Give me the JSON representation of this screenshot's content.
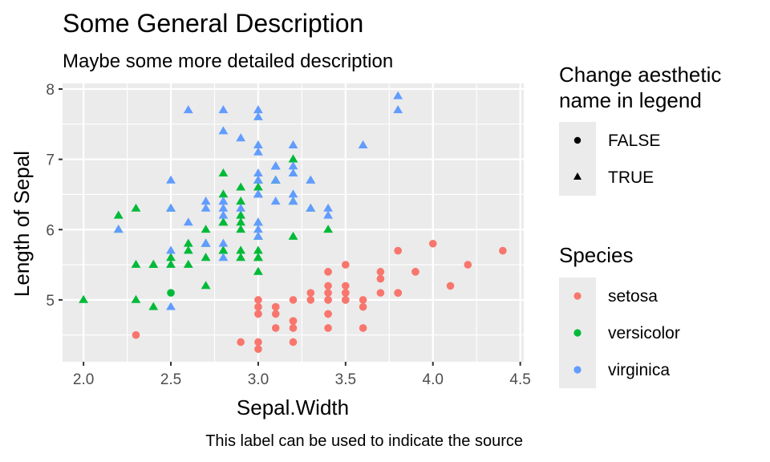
{
  "chart_data": {
    "type": "scatter",
    "title": "Some General Description",
    "subtitle": "Maybe some more detailed description",
    "xlabel": "Sepal.Width",
    "ylabel": "Length of Sepal",
    "caption": "This label can be used to indicate the source",
    "xlim": [
      1.88,
      4.52
    ],
    "ylim": [
      4.12,
      8.08
    ],
    "x_ticks": [
      "2.0",
      "2.5",
      "3.0",
      "3.5",
      "4.0",
      "4.5"
    ],
    "y_ticks": [
      "5",
      "6",
      "7",
      "8"
    ],
    "grid": true,
    "legend_placement": "right",
    "legends": {
      "shape": {
        "title_lines": [
          "Change aesthetic",
          "name in legend"
        ],
        "items": [
          {
            "label": "FALSE",
            "shape": "circle"
          },
          {
            "label": "TRUE",
            "shape": "triangle"
          }
        ]
      },
      "color": {
        "title": "Species",
        "items": [
          {
            "label": "setosa",
            "color": "#F8766D"
          },
          {
            "label": "versicolor",
            "color": "#00BA38"
          },
          {
            "label": "virginica",
            "color": "#619CFF"
          }
        ]
      }
    },
    "series": [
      {
        "name": "setosa",
        "color": "#F8766D",
        "shape": "circle",
        "points": [
          [
            3.5,
            5.1
          ],
          [
            3.0,
            4.9
          ],
          [
            3.2,
            4.7
          ],
          [
            3.1,
            4.6
          ],
          [
            3.6,
            5.0
          ],
          [
            3.9,
            5.4
          ],
          [
            3.4,
            4.6
          ],
          [
            3.4,
            5.0
          ],
          [
            2.9,
            4.4
          ],
          [
            3.1,
            4.9
          ],
          [
            3.7,
            5.4
          ],
          [
            3.4,
            4.8
          ],
          [
            3.0,
            4.8
          ],
          [
            3.0,
            4.3
          ],
          [
            4.0,
            5.8
          ],
          [
            4.4,
            5.7
          ],
          [
            3.9,
            5.4
          ],
          [
            3.5,
            5.1
          ],
          [
            3.8,
            5.7
          ],
          [
            3.8,
            5.1
          ],
          [
            3.4,
            5.4
          ],
          [
            3.7,
            5.1
          ],
          [
            3.6,
            4.6
          ],
          [
            3.3,
            5.1
          ],
          [
            3.4,
            4.8
          ],
          [
            3.0,
            5.0
          ],
          [
            3.4,
            5.0
          ],
          [
            3.5,
            5.2
          ],
          [
            3.4,
            5.2
          ],
          [
            3.2,
            4.7
          ],
          [
            3.1,
            4.8
          ],
          [
            3.4,
            5.4
          ],
          [
            4.1,
            5.2
          ],
          [
            4.2,
            5.5
          ],
          [
            3.1,
            4.9
          ],
          [
            3.2,
            5.0
          ],
          [
            3.5,
            5.5
          ],
          [
            3.6,
            4.9
          ],
          [
            3.0,
            4.4
          ],
          [
            3.4,
            5.1
          ],
          [
            3.5,
            5.0
          ],
          [
            2.3,
            4.5
          ],
          [
            3.2,
            4.4
          ],
          [
            3.5,
            5.0
          ],
          [
            3.8,
            5.1
          ],
          [
            3.0,
            4.8
          ],
          [
            3.8,
            5.1
          ],
          [
            3.2,
            4.6
          ],
          [
            3.7,
            5.3
          ],
          [
            3.3,
            5.0
          ]
        ]
      },
      {
        "name": "versicolor",
        "color": "#00BA38",
        "shape": "mixed",
        "points": [
          [
            3.2,
            7.0,
            "triangle"
          ],
          [
            3.2,
            6.4,
            "triangle"
          ],
          [
            3.1,
            6.9,
            "triangle"
          ],
          [
            2.3,
            5.5,
            "triangle"
          ],
          [
            2.8,
            6.5,
            "triangle"
          ],
          [
            2.8,
            5.7,
            "triangle"
          ],
          [
            3.3,
            6.3,
            "triangle"
          ],
          [
            2.4,
            4.9,
            "triangle"
          ],
          [
            2.9,
            6.6,
            "triangle"
          ],
          [
            2.7,
            5.2,
            "triangle"
          ],
          [
            2.0,
            5.0,
            "triangle"
          ],
          [
            3.0,
            5.9,
            "triangle"
          ],
          [
            2.2,
            6.0,
            "triangle"
          ],
          [
            2.9,
            6.1,
            "triangle"
          ],
          [
            2.9,
            5.6,
            "triangle"
          ],
          [
            3.1,
            6.7,
            "triangle"
          ],
          [
            3.0,
            5.6,
            "triangle"
          ],
          [
            2.7,
            5.8,
            "triangle"
          ],
          [
            2.2,
            6.2,
            "triangle"
          ],
          [
            2.5,
            5.6,
            "triangle"
          ],
          [
            3.2,
            5.9,
            "triangle"
          ],
          [
            2.8,
            6.1,
            "triangle"
          ],
          [
            2.5,
            6.3,
            "triangle"
          ],
          [
            2.8,
            6.1,
            "triangle"
          ],
          [
            2.9,
            6.4,
            "triangle"
          ],
          [
            3.0,
            6.6,
            "triangle"
          ],
          [
            2.8,
            6.8,
            "triangle"
          ],
          [
            3.0,
            6.7,
            "triangle"
          ],
          [
            2.9,
            6.0,
            "triangle"
          ],
          [
            2.6,
            5.7,
            "triangle"
          ],
          [
            2.4,
            5.5,
            "triangle"
          ],
          [
            2.4,
            5.5,
            "triangle"
          ],
          [
            2.7,
            5.8,
            "triangle"
          ],
          [
            2.7,
            6.0,
            "triangle"
          ],
          [
            3.0,
            5.4,
            "triangle"
          ],
          [
            3.4,
            6.0,
            "triangle"
          ],
          [
            3.1,
            6.7,
            "triangle"
          ],
          [
            2.3,
            6.3,
            "triangle"
          ],
          [
            3.0,
            5.6,
            "triangle"
          ],
          [
            2.5,
            5.5,
            "triangle"
          ],
          [
            2.6,
            5.5,
            "triangle"
          ],
          [
            3.0,
            6.1,
            "triangle"
          ],
          [
            2.6,
            5.8,
            "triangle"
          ],
          [
            2.3,
            5.0,
            "triangle"
          ],
          [
            2.7,
            5.6,
            "triangle"
          ],
          [
            3.0,
            5.7,
            "triangle"
          ],
          [
            2.9,
            5.7,
            "triangle"
          ],
          [
            2.9,
            6.2,
            "triangle"
          ],
          [
            2.5,
            5.1,
            "circle"
          ],
          [
            2.8,
            5.7,
            "triangle"
          ]
        ]
      },
      {
        "name": "virginica",
        "color": "#619CFF",
        "shape": "triangle",
        "points": [
          [
            3.3,
            6.3
          ],
          [
            2.7,
            5.8
          ],
          [
            3.0,
            7.1
          ],
          [
            2.9,
            6.3
          ],
          [
            3.0,
            6.5
          ],
          [
            3.0,
            7.6
          ],
          [
            2.5,
            4.9
          ],
          [
            2.9,
            7.3
          ],
          [
            2.5,
            6.7
          ],
          [
            3.6,
            7.2
          ],
          [
            3.2,
            6.5
          ],
          [
            2.7,
            6.4
          ],
          [
            3.0,
            6.8
          ],
          [
            2.5,
            5.7
          ],
          [
            2.8,
            5.8
          ],
          [
            3.2,
            6.4
          ],
          [
            3.0,
            6.5
          ],
          [
            3.8,
            7.7
          ],
          [
            2.6,
            7.7
          ],
          [
            2.2,
            6.0
          ],
          [
            3.2,
            6.9
          ],
          [
            2.8,
            5.6
          ],
          [
            2.8,
            7.7
          ],
          [
            2.7,
            6.3
          ],
          [
            3.3,
            6.7
          ],
          [
            3.2,
            7.2
          ],
          [
            2.8,
            6.2
          ],
          [
            3.0,
            6.1
          ],
          [
            2.8,
            6.4
          ],
          [
            3.0,
            7.2
          ],
          [
            2.8,
            7.4
          ],
          [
            3.8,
            7.9
          ],
          [
            2.8,
            6.4
          ],
          [
            2.8,
            6.3
          ],
          [
            2.6,
            6.1
          ],
          [
            3.0,
            7.7
          ],
          [
            3.4,
            6.3
          ],
          [
            3.1,
            6.4
          ],
          [
            3.0,
            6.0
          ],
          [
            3.1,
            6.9
          ],
          [
            3.1,
            6.7
          ],
          [
            3.1,
            6.9
          ],
          [
            2.7,
            5.8
          ],
          [
            3.2,
            6.8
          ],
          [
            3.3,
            6.7
          ],
          [
            3.0,
            6.7
          ],
          [
            2.5,
            6.3
          ],
          [
            3.0,
            6.5
          ],
          [
            3.4,
            6.2
          ],
          [
            3.0,
            5.9
          ]
        ]
      }
    ]
  }
}
